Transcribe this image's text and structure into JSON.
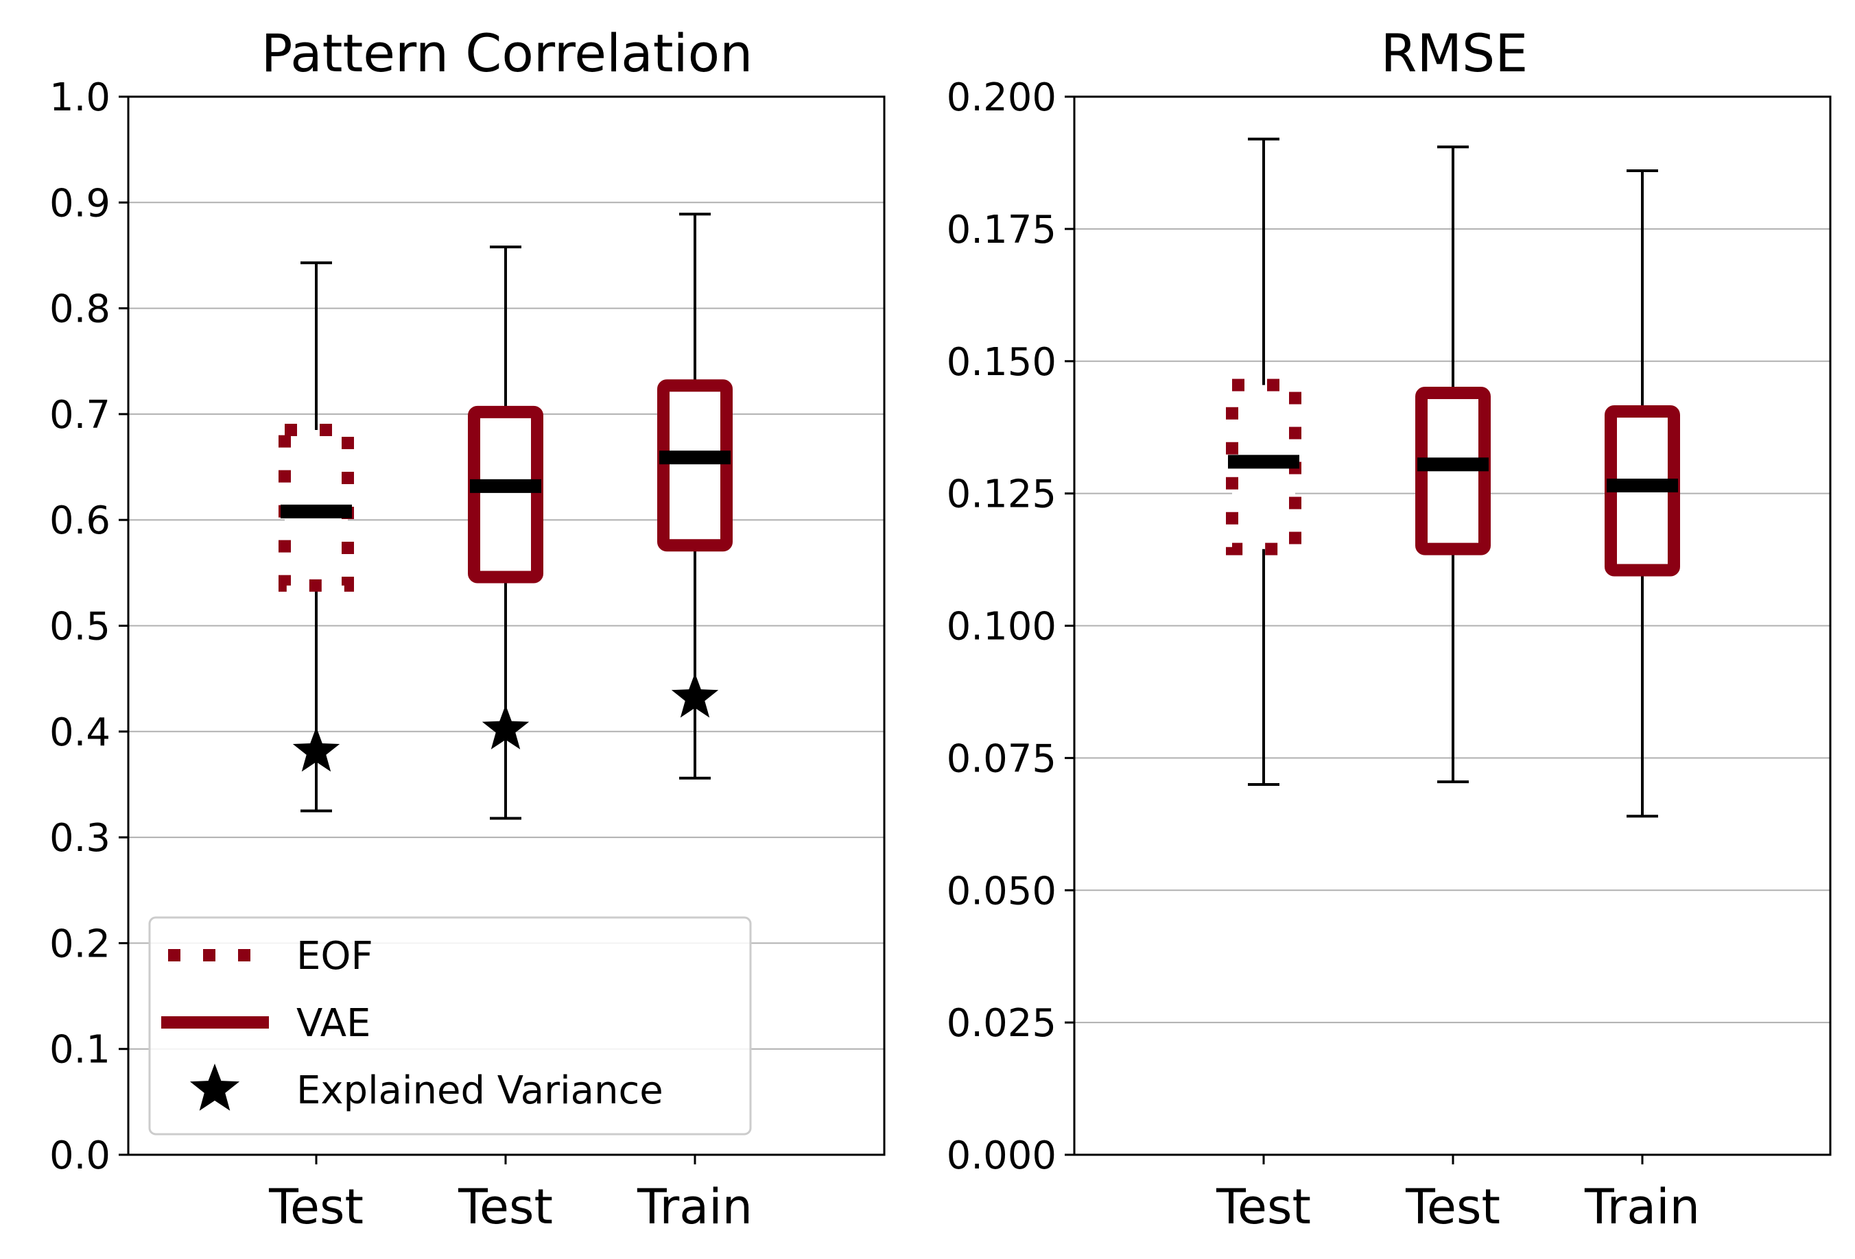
{
  "colors": {
    "box": "#8b0013",
    "median": "#000000",
    "grid": "#b0b0b0",
    "whisker": "#000000",
    "star": "#000000"
  },
  "chart_data": [
    {
      "type": "box",
      "title": "Pattern Correlation",
      "xlabel": "",
      "ylabel": "",
      "ylim": [
        0.0,
        1.0
      ],
      "yticks": [
        "0.0",
        "0.1",
        "0.2",
        "0.3",
        "0.4",
        "0.5",
        "0.6",
        "0.7",
        "0.8",
        "0.9",
        "1.0"
      ],
      "grid": "horizontal",
      "categories": [
        "Test",
        "Test",
        "Train"
      ],
      "boxes": [
        {
          "series": "EOF",
          "style": "dotted",
          "whislo": 0.325,
          "q1": 0.538,
          "median": 0.608,
          "q3": 0.685,
          "whishi": 0.843,
          "explained_variance": 0.381
        },
        {
          "series": "VAE",
          "style": "solid",
          "whislo": 0.318,
          "q1": 0.546,
          "median": 0.632,
          "q3": 0.702,
          "whishi": 0.858,
          "explained_variance": 0.402
        },
        {
          "series": "VAE",
          "style": "solid",
          "whislo": 0.356,
          "q1": 0.576,
          "median": 0.659,
          "q3": 0.727,
          "whishi": 0.889,
          "explained_variance": 0.432
        }
      ],
      "legend": {
        "placement": "lower-left",
        "entries": [
          {
            "label": "EOF",
            "marker": "dotted-line"
          },
          {
            "label": "VAE",
            "marker": "solid-line"
          },
          {
            "label": "Explained Variance",
            "marker": "star"
          }
        ]
      }
    },
    {
      "type": "box",
      "title": "RMSE",
      "xlabel": "",
      "ylabel": "",
      "ylim": [
        0.0,
        0.2
      ],
      "yticks": [
        "0.000",
        "0.025",
        "0.050",
        "0.075",
        "0.100",
        "0.125",
        "0.150",
        "0.175",
        "0.200"
      ],
      "grid": "horizontal",
      "categories": [
        "Test",
        "Test",
        "Train"
      ],
      "boxes": [
        {
          "series": "EOF",
          "style": "dotted",
          "whislo": 0.07,
          "q1": 0.1145,
          "median": 0.131,
          "q3": 0.1455,
          "whishi": 0.192
        },
        {
          "series": "VAE",
          "style": "solid",
          "whislo": 0.0705,
          "q1": 0.1145,
          "median": 0.1305,
          "q3": 0.144,
          "whishi": 0.1905
        },
        {
          "series": "VAE",
          "style": "solid",
          "whislo": 0.064,
          "q1": 0.1105,
          "median": 0.1265,
          "q3": 0.1405,
          "whishi": 0.186
        }
      ]
    }
  ]
}
